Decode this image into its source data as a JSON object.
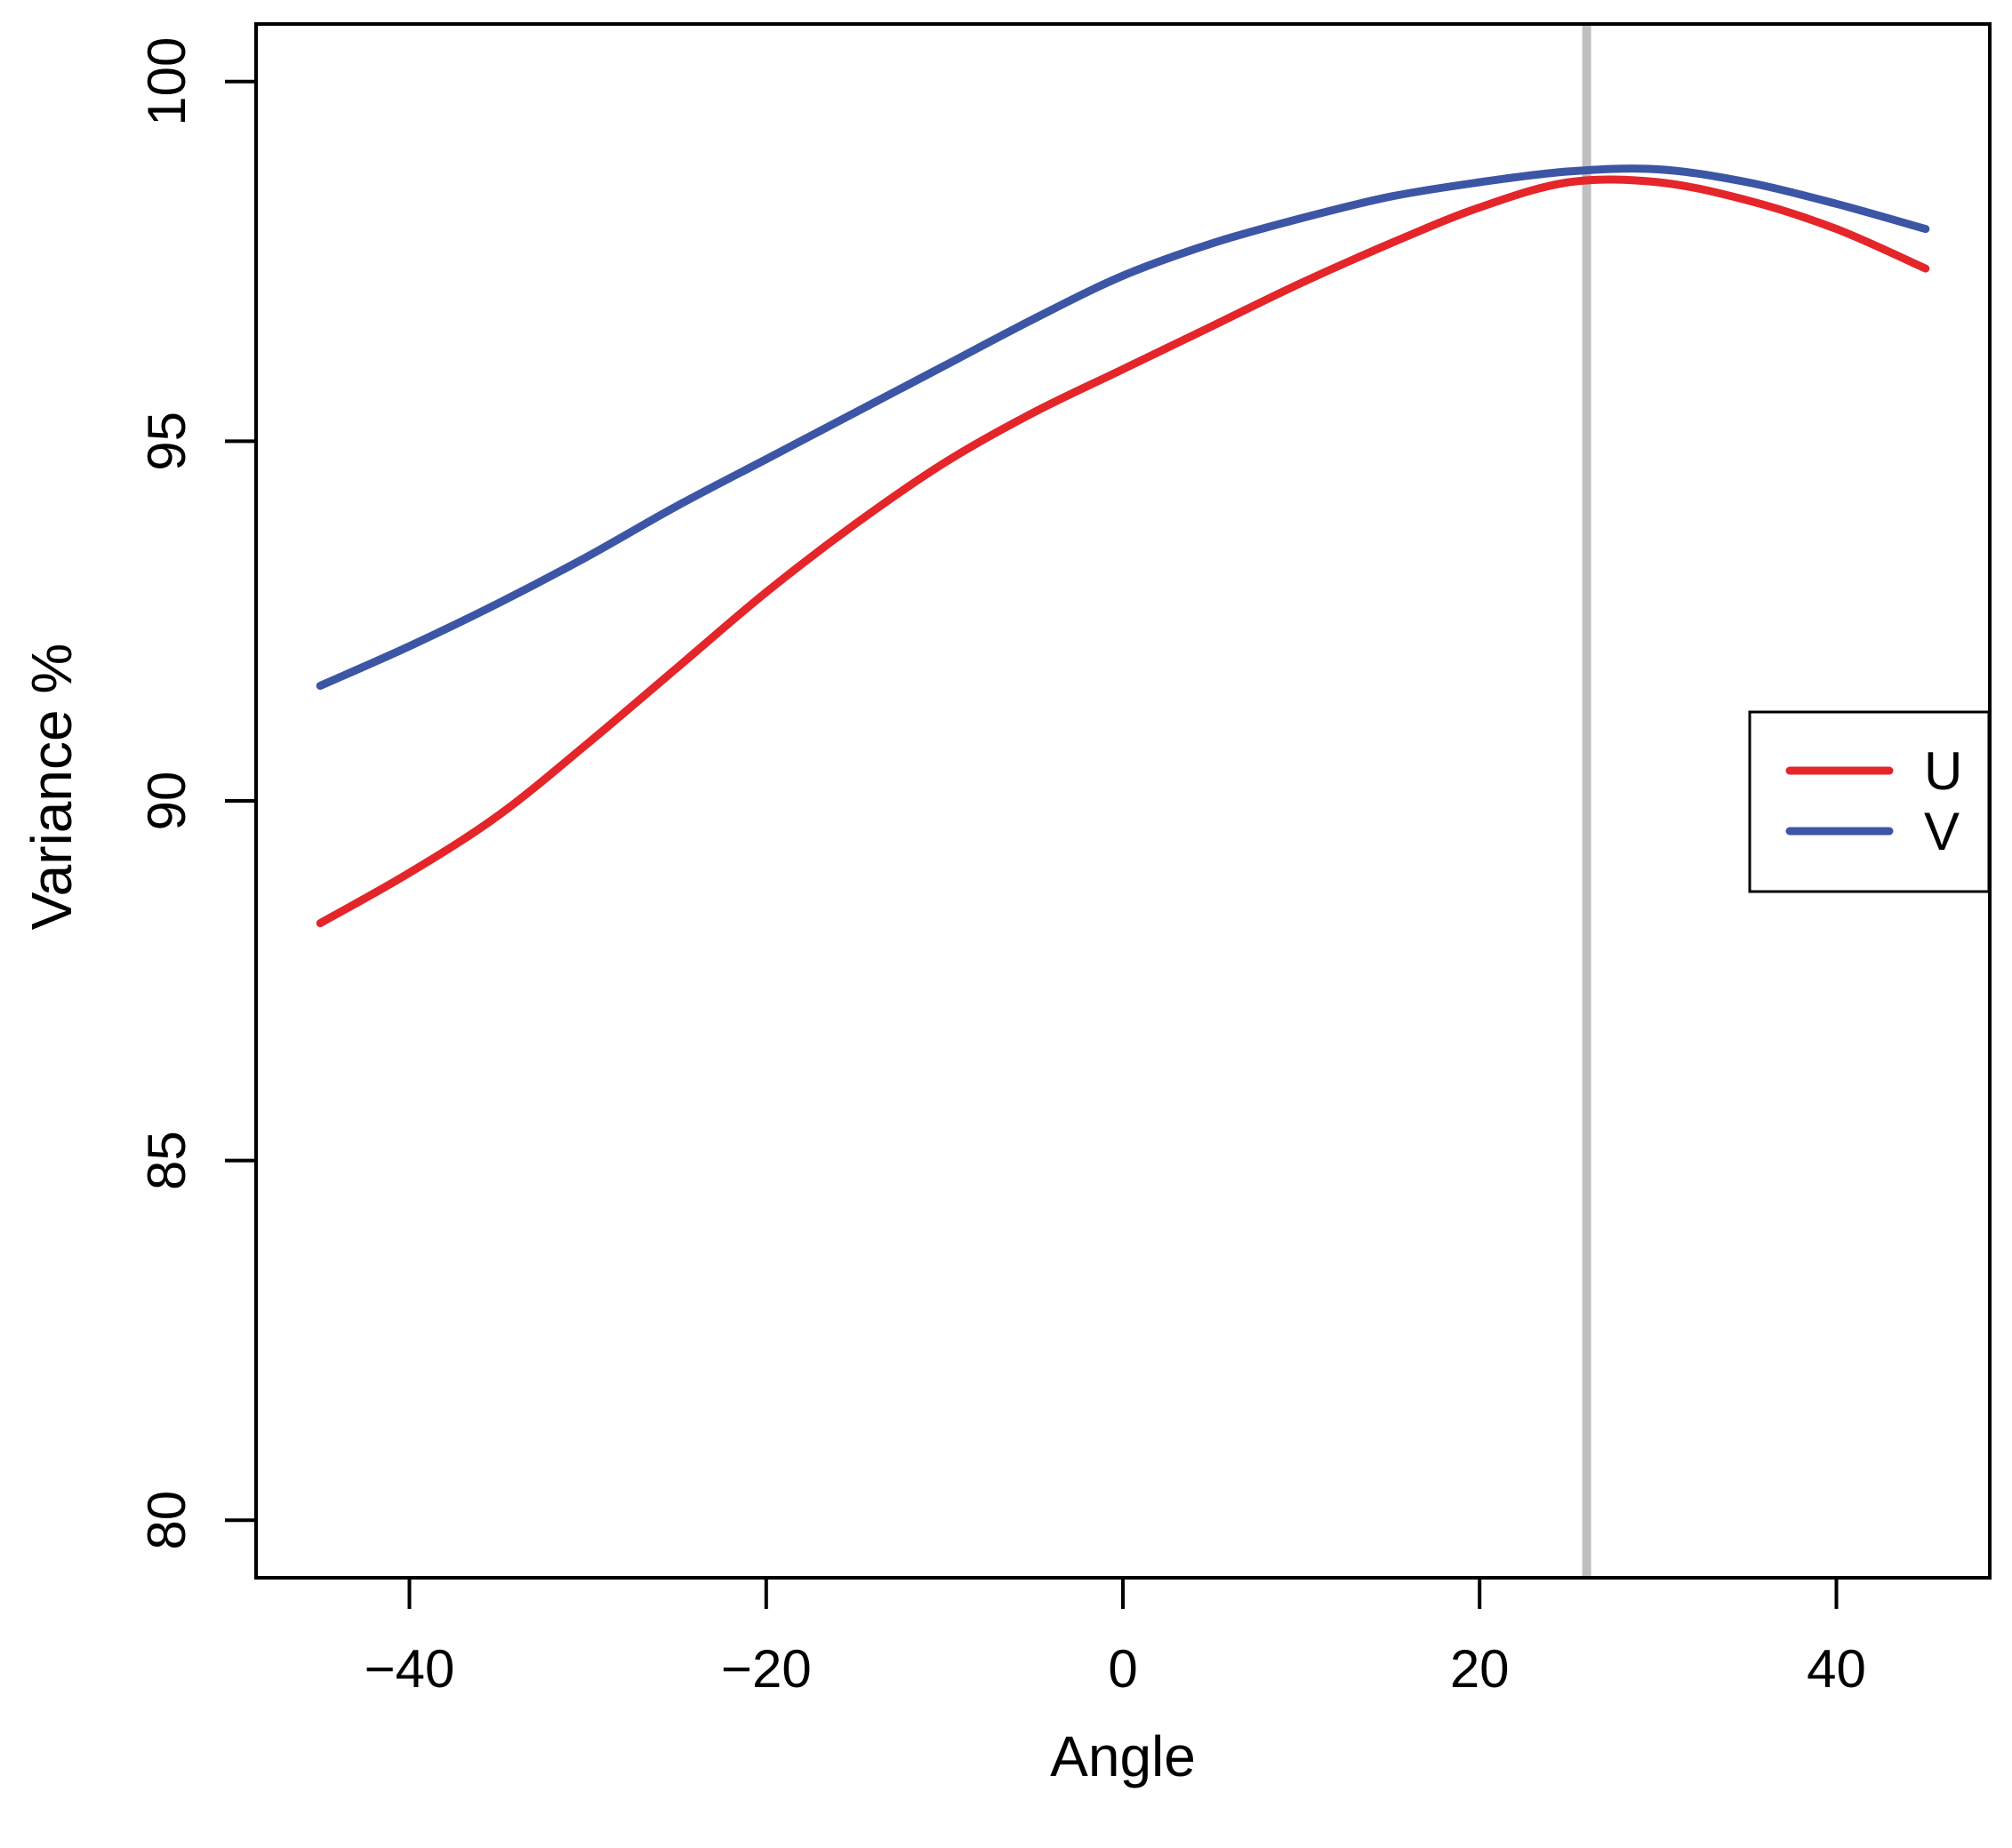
{
  "figure": {
    "background": "#ffffff",
    "axes": {
      "xlabel": "Angle",
      "ylabel": "Variance %",
      "x_tick_labels": [
        "−40",
        "−20",
        "0",
        "20",
        "40"
      ],
      "y_tick_labels": [
        "80",
        "85",
        "90",
        "95",
        "100"
      ]
    },
    "legend": {
      "entries": [
        {
          "label": "U",
          "color": "#e42529"
        },
        {
          "label": "V",
          "color": "#3c55a5"
        }
      ]
    }
  },
  "chart_data": {
    "type": "line",
    "title": "",
    "xlabel": "Angle",
    "ylabel": "Variance %",
    "x": [
      -45,
      -40,
      -35,
      -30,
      -25,
      -20,
      -15,
      -10,
      -5,
      0,
      5,
      10,
      15,
      20,
      25,
      30,
      35,
      40,
      45
    ],
    "series": [
      {
        "name": "U",
        "color": "#e42529",
        "values": [
          88.3,
          89.0,
          89.8,
          90.8,
          91.85,
          92.9,
          93.85,
          94.7,
          95.4,
          96.0,
          96.6,
          97.2,
          97.75,
          98.25,
          98.6,
          98.6,
          98.35,
          97.95,
          97.4
        ]
      },
      {
        "name": "V",
        "color": "#3c55a5",
        "values": [
          91.6,
          92.15,
          92.75,
          93.4,
          94.1,
          94.75,
          95.4,
          96.05,
          96.7,
          97.3,
          97.75,
          98.1,
          98.4,
          98.6,
          98.75,
          98.78,
          98.6,
          98.3,
          97.95
        ]
      }
    ],
    "annotations": [
      {
        "type": "vline",
        "x": 26,
        "color": "#bfbfbf",
        "note": "vertical reference line at peak"
      }
    ],
    "x_ticks": [
      -40,
      -20,
      0,
      20,
      40
    ],
    "y_ticks": [
      80,
      85,
      90,
      95,
      100
    ],
    "xlim": [
      -48.6,
      48.6
    ],
    "ylim": [
      79.2,
      100.8
    ],
    "grid": false,
    "legend_position": "right-middle"
  }
}
